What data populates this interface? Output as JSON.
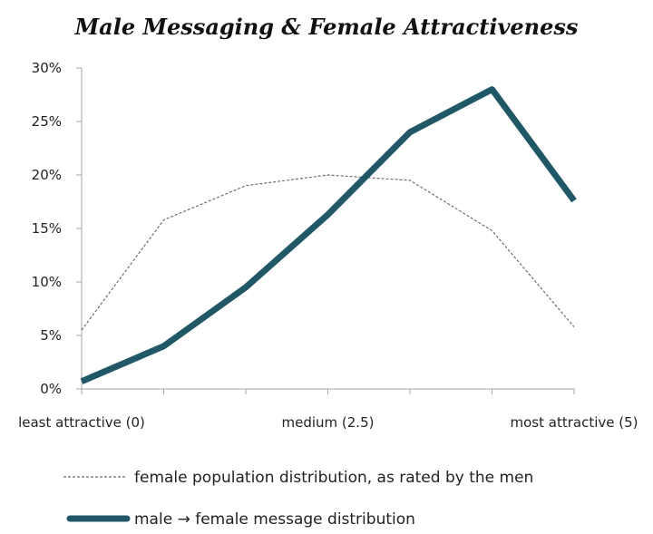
{
  "chart_data": {
    "type": "line",
    "title": "Male Messaging & Female Attractiveness",
    "xlabel": "",
    "ylabel": "",
    "x": [
      0,
      1,
      2,
      3,
      4,
      5,
      6
    ],
    "x_tick_labels": [
      {
        "x": 0,
        "label": "least attractive (0)"
      },
      {
        "x": 3,
        "label": "medium (2.5)"
      },
      {
        "x": 6,
        "label": "most attractive (5)"
      }
    ],
    "y_ticks": [
      "0%",
      "5%",
      "10%",
      "15%",
      "20%",
      "25%",
      "30%"
    ],
    "ylim": [
      0,
      30
    ],
    "grid": false,
    "legend_position": "bottom",
    "series": [
      {
        "name": "female population distribution, as rated by the men",
        "style": "dashed-thin",
        "color": "#6e6e6e",
        "values": [
          5.5,
          15.8,
          19.0,
          20.0,
          19.5,
          14.8,
          5.8
        ]
      },
      {
        "name": "male → female message distribution",
        "style": "solid-thick",
        "color": "#215868",
        "values": [
          0.7,
          4.0,
          9.5,
          16.3,
          24.0,
          28.0,
          17.6
        ]
      }
    ]
  }
}
